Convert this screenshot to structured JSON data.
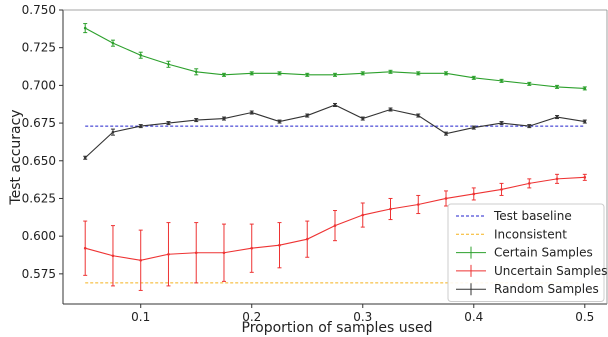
{
  "chart_data": {
    "type": "line",
    "xlabel": "Proportion of samples used",
    "ylabel": "Test accuracy",
    "xlim": [
      0.03,
      0.52
    ],
    "ylim": [
      0.555,
      0.75
    ],
    "xticks": [
      0.1,
      0.2,
      0.3,
      0.4,
      0.5
    ],
    "xtick_labels": [
      "0.1",
      "0.2",
      "0.3",
      "0.4",
      "0.5"
    ],
    "yticks": [
      0.575,
      0.6,
      0.625,
      0.65,
      0.675,
      0.7,
      0.725,
      0.75
    ],
    "ytick_labels": [
      "0.575",
      "0.600",
      "0.625",
      "0.650",
      "0.675",
      "0.700",
      "0.725",
      "0.750"
    ],
    "grid": false,
    "legend_position": "bottom-right",
    "x": [
      0.05,
      0.075,
      0.1,
      0.125,
      0.15,
      0.175,
      0.2,
      0.225,
      0.25,
      0.275,
      0.3,
      0.325,
      0.35,
      0.375,
      0.4,
      0.425,
      0.45,
      0.475,
      0.5
    ],
    "baselines": [
      {
        "name": "Test baseline",
        "value": 0.673,
        "color": "#2222cc",
        "style": "dashed"
      },
      {
        "name": "Inconsistent",
        "value": 0.569,
        "color": "#f5b21c",
        "style": "dashed"
      }
    ],
    "series": [
      {
        "name": "Certain Samples",
        "color": "#2ca02c",
        "values": [
          0.738,
          0.728,
          0.72,
          0.714,
          0.709,
          0.707,
          0.708,
          0.708,
          0.707,
          0.707,
          0.708,
          0.709,
          0.708,
          0.708,
          0.705,
          0.703,
          0.701,
          0.699,
          0.698
        ],
        "errors": [
          0.003,
          0.002,
          0.002,
          0.002,
          0.002,
          0.001,
          0.001,
          0.001,
          0.001,
          0.001,
          0.001,
          0.001,
          0.001,
          0.001,
          0.001,
          0.001,
          0.001,
          0.001,
          0.001
        ]
      },
      {
        "name": "Uncertain Samples",
        "color": "#ee3333",
        "values": [
          0.592,
          0.587,
          0.584,
          0.588,
          0.589,
          0.589,
          0.592,
          0.594,
          0.598,
          0.607,
          0.614,
          0.618,
          0.621,
          0.625,
          0.628,
          0.631,
          0.635,
          0.638,
          0.639
        ],
        "errors": [
          0.018,
          0.02,
          0.02,
          0.021,
          0.02,
          0.019,
          0.016,
          0.015,
          0.012,
          0.01,
          0.008,
          0.007,
          0.006,
          0.005,
          0.004,
          0.004,
          0.003,
          0.003,
          0.002
        ]
      },
      {
        "name": "Random Samples",
        "color": "#333333",
        "values": [
          0.652,
          0.669,
          0.673,
          0.675,
          0.677,
          0.678,
          0.682,
          0.676,
          0.68,
          0.687,
          0.678,
          0.684,
          0.68,
          0.668,
          0.672,
          0.675,
          0.673,
          0.679,
          0.676
        ],
        "errors": [
          0.001,
          0.002,
          0.001,
          0.001,
          0.001,
          0.001,
          0.001,
          0.001,
          0.001,
          0.001,
          0.001,
          0.001,
          0.001,
          0.001,
          0.001,
          0.001,
          0.001,
          0.001,
          0.001
        ]
      }
    ]
  }
}
